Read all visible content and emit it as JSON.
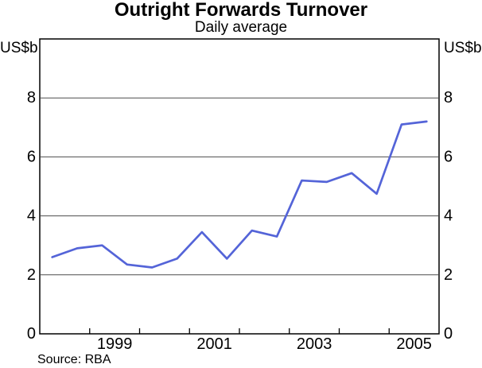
{
  "source": "Source: RBA",
  "colors": {
    "line": "#5464d8",
    "grid": "#4d4d4d",
    "axis": "#000000",
    "text": "#000000",
    "background": "#ffffff"
  },
  "chart_data": {
    "type": "line",
    "title": "Outright Forwards Turnover",
    "subtitle": "Daily average",
    "ylabel_left": "US$b",
    "ylabel_right": "US$b",
    "xlim": [
      1998,
      2006
    ],
    "ylim": [
      0,
      10
    ],
    "yticks": [
      0,
      2,
      4,
      6,
      8
    ],
    "xticks": [
      1999,
      2000,
      2001,
      2002,
      2003,
      2004,
      2005
    ],
    "xtick_labels": [
      1999,
      2001,
      2003,
      2005
    ],
    "grid": "horizontal-at-yticks-2-4-6-8",
    "legend": "none",
    "series": [
      {
        "name": "Outright forwards turnover, daily average (US$b)",
        "color": "#5464d8",
        "points": [
          [
            1998.25,
            2.6
          ],
          [
            1998.75,
            2.9
          ],
          [
            1999.25,
            3.0
          ],
          [
            1999.75,
            2.35
          ],
          [
            2000.25,
            2.25
          ],
          [
            2000.75,
            2.55
          ],
          [
            2001.25,
            3.45
          ],
          [
            2001.75,
            2.55
          ],
          [
            2002.25,
            3.5
          ],
          [
            2002.75,
            3.3
          ],
          [
            2003.25,
            5.2
          ],
          [
            2003.75,
            5.15
          ],
          [
            2004.25,
            5.45
          ],
          [
            2004.75,
            4.75
          ],
          [
            2005.25,
            7.1
          ],
          [
            2005.75,
            7.2
          ]
        ]
      }
    ]
  }
}
